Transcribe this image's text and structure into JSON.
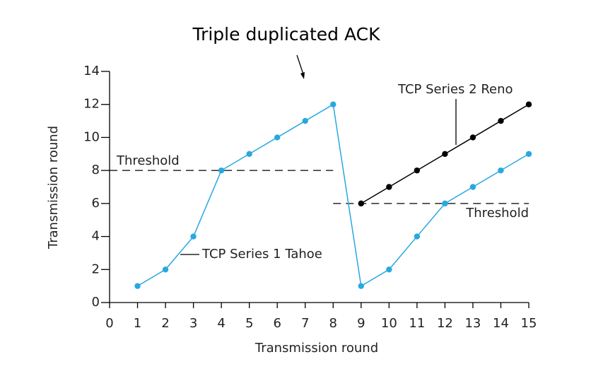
{
  "chart_data": {
    "type": "line",
    "title": "Triple duplicated ACK",
    "xlabel": "Transmission round",
    "ylabel": "Transmission round",
    "x": [
      1,
      2,
      3,
      4,
      5,
      6,
      7,
      8,
      9,
      10,
      11,
      12,
      13,
      14,
      15
    ],
    "series": [
      {
        "name": "TCP Series 1 Tahoe",
        "color": "#29a8e0",
        "values": [
          1,
          2,
          4,
          8,
          9,
          10,
          11,
          12,
          1,
          2,
          4,
          6,
          7,
          8,
          9
        ]
      },
      {
        "name": "TCP Series 2 Reno",
        "color": "#000000",
        "values": [
          null,
          null,
          null,
          null,
          null,
          null,
          null,
          null,
          6,
          7,
          8,
          9,
          10,
          11,
          12
        ]
      }
    ],
    "annotations": [
      {
        "text": "Threshold",
        "y": 8,
        "x": [
          0,
          8
        ]
      },
      {
        "text": "Threshold",
        "y": 6,
        "x": [
          8,
          15
        ]
      }
    ],
    "xlim": [
      0,
      15
    ],
    "xticks": [
      0,
      1,
      2,
      3,
      4,
      5,
      6,
      7,
      8,
      9,
      10,
      11,
      12,
      13,
      14,
      15
    ],
    "ylim": [
      0,
      14
    ],
    "yticks": [
      0,
      2,
      4,
      6,
      8,
      10,
      12,
      14
    ],
    "grid": false
  }
}
